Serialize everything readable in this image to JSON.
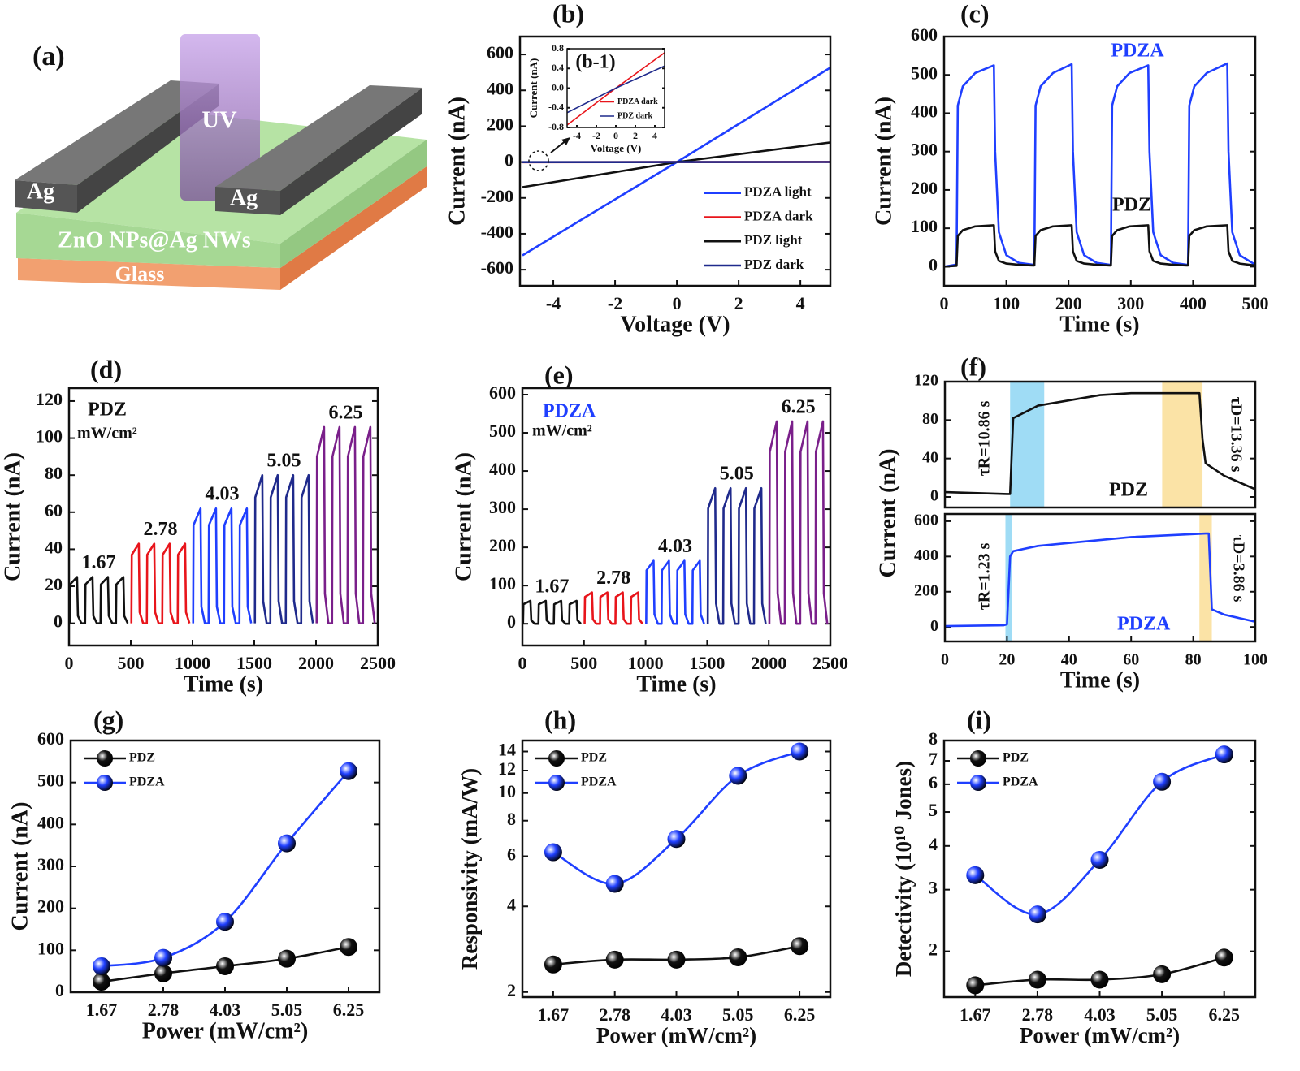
{
  "schematic": {
    "panel_label": "(a)",
    "beam": "UV",
    "electrodes": [
      "Ag",
      "Ag"
    ],
    "layers": [
      "ZnO NPs@Ag NWs",
      "Glass"
    ]
  },
  "chart_data": [
    {
      "type": "line",
      "panel_label": "(b)",
      "xlabel": "Voltage (V)",
      "ylabel": "Current (nA)",
      "x": [
        -5,
        0,
        5
      ],
      "xlim": [
        -5.08,
        4.97
      ],
      "xticks": [
        -4,
        -2,
        0,
        2,
        4
      ],
      "ylim": [
        -690,
        700
      ],
      "yticks": [
        -600,
        -400,
        -200,
        0,
        200,
        400,
        600
      ],
      "legend": "lower right",
      "series": [
        {
          "name": "PDZA light",
          "color": "#1f3fff",
          "values": [
            -520,
            0,
            530
          ]
        },
        {
          "name": "PDZA dark",
          "color": "#e8151b",
          "values": [
            -0.75,
            0,
            0.72
          ]
        },
        {
          "name": "PDZ light",
          "color": "#111111",
          "values": [
            -140,
            0,
            110
          ]
        },
        {
          "name": "PDZ dark",
          "color": "#1f2a8c",
          "values": [
            -0.5,
            0,
            0.45
          ]
        }
      ]
    },
    {
      "type": "line",
      "panel_label": "(b-1)",
      "xlabel": "Voltage (V)",
      "ylabel": "Current (nA)",
      "x": [
        -5,
        0,
        5
      ],
      "xlim": [
        -5,
        5
      ],
      "xticks": [
        -4,
        -2,
        0,
        2,
        4
      ],
      "ylim": [
        -0.8,
        0.8
      ],
      "yticks": [
        -0.8,
        -0.4,
        {
          "value": 0,
          "label": "0.0"
        },
        0.4,
        0.8
      ],
      "legend": "lower right",
      "series": [
        {
          "name": "PDZA dark",
          "color": "#e8151b",
          "values": [
            -0.75,
            0,
            0.72
          ]
        },
        {
          "name": "PDZ dark",
          "color": "#1f2a8c",
          "values": [
            -0.5,
            0,
            0.45
          ]
        }
      ]
    },
    {
      "type": "line",
      "panel_label": "(c)",
      "xlabel": "Time (s)",
      "ylabel": "Current (nA)",
      "x": [
        0,
        18,
        20,
        22,
        30,
        50,
        80,
        82,
        88,
        100,
        120,
        143,
        145,
        147,
        155,
        175,
        205,
        207,
        213,
        225,
        245,
        266,
        268,
        270,
        278,
        298,
        328,
        330,
        336,
        348,
        368,
        390,
        392,
        394,
        402,
        422,
        455,
        457,
        463,
        475,
        500
      ],
      "xlim": [
        0,
        500
      ],
      "xticks": [
        0,
        100,
        200,
        300,
        400,
        500
      ],
      "ylim": [
        -50,
        600
      ],
      "yticks": [
        0,
        100,
        200,
        300,
        400,
        500,
        600
      ],
      "legend": false,
      "series": [
        {
          "name": "PDZA",
          "color": "#1f3fff",
          "values": [
            0,
            5,
            5,
            420,
            470,
            505,
            525,
            300,
            90,
            30,
            10,
            5,
            5,
            420,
            470,
            505,
            528,
            300,
            90,
            30,
            10,
            5,
            5,
            420,
            470,
            505,
            525,
            300,
            90,
            30,
            10,
            5,
            5,
            420,
            470,
            505,
            530,
            300,
            90,
            30,
            5
          ]
        },
        {
          "name": "PDZ",
          "color": "#111111",
          "values": [
            0,
            2,
            2,
            80,
            95,
            105,
            108,
            40,
            15,
            8,
            5,
            3,
            3,
            80,
            95,
            105,
            108,
            40,
            15,
            8,
            5,
            3,
            3,
            80,
            95,
            105,
            108,
            40,
            15,
            8,
            5,
            3,
            3,
            80,
            95,
            105,
            108,
            40,
            15,
            8,
            3
          ]
        }
      ]
    },
    {
      "type": "line",
      "panel_label": "(d)",
      "xlabel": "Time (s)",
      "ylabel": "Current (nA)",
      "xlim": [
        0,
        2500
      ],
      "xticks": [
        0,
        500,
        1000,
        1500,
        2000,
        2500
      ],
      "ylim": [
        -12,
        127
      ],
      "yticks": [
        0,
        20,
        40,
        60,
        80,
        100,
        120
      ],
      "legend": false,
      "annotations": [
        {
          "text": "PDZ"
        },
        {
          "text": "mW/cm²"
        }
      ],
      "series": [
        {
          "name": "1.67",
          "color": "#111111",
          "x": [
            5,
            8,
            65,
            72,
            100,
            130,
            133,
            190,
            197,
            225,
            255,
            258,
            315,
            322,
            350,
            380,
            383,
            440,
            447,
            475
          ],
          "values": [
            0,
            21,
            25,
            4,
            0,
            0,
            21,
            25,
            4,
            0,
            0,
            21,
            25,
            4,
            0,
            0,
            21,
            25,
            4,
            0
          ]
        },
        {
          "name": "2.78",
          "color": "#e8151b",
          "x": [
            505,
            508,
            565,
            572,
            600,
            630,
            633,
            690,
            697,
            725,
            755,
            758,
            815,
            822,
            850,
            880,
            883,
            940,
            947,
            975
          ],
          "values": [
            0,
            37,
            43,
            6,
            0,
            0,
            37,
            43,
            6,
            0,
            0,
            37,
            43,
            6,
            0,
            0,
            37,
            43,
            6,
            0
          ]
        },
        {
          "name": "4.03",
          "color": "#1f3fff",
          "x": [
            1005,
            1008,
            1065,
            1072,
            1100,
            1130,
            1133,
            1190,
            1197,
            1225,
            1255,
            1258,
            1315,
            1322,
            1350,
            1380,
            1383,
            1440,
            1447,
            1475
          ],
          "values": [
            0,
            53,
            62,
            9,
            0,
            0,
            53,
            62,
            9,
            0,
            0,
            53,
            62,
            9,
            0,
            0,
            53,
            62,
            9,
            0
          ]
        },
        {
          "name": "5.05",
          "color": "#1f2a8c",
          "x": [
            1505,
            1508,
            1565,
            1572,
            1600,
            1630,
            1633,
            1690,
            1697,
            1725,
            1755,
            1758,
            1815,
            1822,
            1850,
            1880,
            1883,
            1940,
            1947,
            1975
          ],
          "values": [
            0,
            68,
            80,
            12,
            0,
            0,
            68,
            80,
            12,
            0,
            0,
            68,
            80,
            12,
            0,
            0,
            68,
            80,
            12,
            0
          ]
        },
        {
          "name": "6.25",
          "color": "#7a1f8a",
          "x": [
            2005,
            2008,
            2065,
            2072,
            2100,
            2130,
            2133,
            2190,
            2197,
            2225,
            2255,
            2258,
            2315,
            2322,
            2350,
            2380,
            2383,
            2440,
            2447,
            2475
          ],
          "values": [
            0,
            90,
            106,
            16,
            0,
            0,
            90,
            106,
            16,
            0,
            0,
            90,
            106,
            16,
            0,
            0,
            90,
            106,
            16,
            0
          ]
        }
      ]
    },
    {
      "type": "line",
      "panel_label": "(e)",
      "xlabel": "Time (s)",
      "ylabel": "Current (nA)",
      "xlim": [
        0,
        2500
      ],
      "xticks": [
        0,
        500,
        1000,
        1500,
        2000,
        2500
      ],
      "ylim": [
        -57,
        617
      ],
      "yticks": [
        0,
        100,
        200,
        300,
        400,
        500,
        600
      ],
      "legend": false,
      "annotations": [
        {
          "text": "PDZA",
          "color": "#1f3fff"
        },
        {
          "text": "mW/cm²"
        }
      ],
      "series": [
        {
          "name": "1.67",
          "color": "#111111",
          "x": [
            5,
            8,
            65,
            72,
            100,
            130,
            133,
            190,
            197,
            225,
            255,
            258,
            315,
            322,
            350,
            380,
            383,
            440,
            447,
            475
          ],
          "values": [
            0,
            51,
            60,
            9,
            0,
            0,
            51,
            60,
            9,
            0,
            0,
            51,
            60,
            9,
            0,
            0,
            51,
            60,
            9,
            0
          ]
        },
        {
          "name": "2.78",
          "color": "#e8151b",
          "x": [
            505,
            508,
            565,
            572,
            600,
            630,
            633,
            690,
            697,
            725,
            755,
            758,
            815,
            822,
            850,
            880,
            883,
            940,
            947,
            975
          ],
          "values": [
            0,
            70,
            82,
            12,
            0,
            0,
            70,
            82,
            12,
            0,
            0,
            70,
            82,
            12,
            0,
            0,
            70,
            82,
            12,
            0
          ]
        },
        {
          "name": "4.03",
          "color": "#1f3fff",
          "x": [
            1005,
            1008,
            1065,
            1072,
            1100,
            1130,
            1133,
            1190,
            1197,
            1225,
            1255,
            1258,
            1315,
            1322,
            1350,
            1380,
            1383,
            1440,
            1447,
            1475
          ],
          "values": [
            0,
            140,
            165,
            25,
            0,
            0,
            140,
            165,
            25,
            0,
            0,
            140,
            165,
            25,
            0,
            0,
            140,
            165,
            25,
            0
          ]
        },
        {
          "name": "5.05",
          "color": "#1f2a8c",
          "x": [
            1505,
            1508,
            1565,
            1572,
            1600,
            1630,
            1633,
            1690,
            1697,
            1725,
            1755,
            1758,
            1815,
            1822,
            1850,
            1880,
            1883,
            1940,
            1947,
            1975
          ],
          "values": [
            0,
            302,
            355,
            53,
            0,
            0,
            302,
            355,
            53,
            0,
            0,
            302,
            355,
            53,
            0,
            0,
            302,
            355,
            53,
            0
          ]
        },
        {
          "name": "6.25",
          "color": "#7a1f8a",
          "x": [
            2005,
            2008,
            2065,
            2072,
            2100,
            2130,
            2133,
            2190,
            2197,
            2225,
            2255,
            2258,
            2315,
            2322,
            2350,
            2380,
            2383,
            2440,
            2447,
            2475
          ],
          "values": [
            0,
            450,
            530,
            80,
            0,
            0,
            450,
            530,
            80,
            0,
            0,
            450,
            530,
            80,
            0,
            0,
            450,
            530,
            80,
            0
          ]
        }
      ]
    },
    {
      "type": "line",
      "panel_label": "(f)",
      "x": [
        0,
        20,
        21,
        22,
        30,
        50,
        60,
        82,
        83,
        84,
        90,
        100
      ],
      "xlim": [
        0,
        100
      ],
      "ylim": [
        -11,
        120
      ],
      "yticks": [
        0,
        40,
        80,
        120
      ],
      "legend": false,
      "spans": [
        {
          "x0": 21,
          "x1": 32,
          "color": "#9fdcf5"
        },
        {
          "x0": 70,
          "x1": 83,
          "color": "#fbe3a6"
        }
      ],
      "annotations": [
        {
          "text": "τR=10.86 s"
        },
        {
          "text": "τD=13.36 s"
        },
        {
          "text": "PDZ"
        }
      ],
      "series": [
        {
          "name": "PDZ",
          "color": "#111111",
          "values": [
            5,
            3,
            3,
            82,
            95,
            106,
            108,
            108,
            60,
            35,
            22,
            8
          ]
        }
      ]
    },
    {
      "type": "line",
      "xlabel": "Time (s)",
      "ylabel": "Current (nA)",
      "x": [
        0,
        19,
        20,
        21,
        22,
        30,
        60,
        84,
        85,
        86,
        90,
        100
      ],
      "xlim": [
        0,
        100
      ],
      "xticks": [
        0,
        20,
        40,
        60,
        80,
        100
      ],
      "ylim": [
        -82,
        641
      ],
      "yticks": [
        0,
        200,
        400,
        600
      ],
      "legend": false,
      "spans": [
        {
          "x0": 19.5,
          "x1": 21.5,
          "color": "#9fdcf5"
        },
        {
          "x0": 82,
          "x1": 86,
          "color": "#fbe3a6"
        }
      ],
      "annotations": [
        {
          "text": "τR=1.23 s"
        },
        {
          "text": "τD=3.86 s"
        },
        {
          "text": "PDZA",
          "color": "#1f3fff"
        }
      ],
      "series": [
        {
          "name": "PDZA",
          "color": "#1f3fff",
          "values": [
            5,
            10,
            15,
            400,
            430,
            460,
            510,
            530,
            530,
            100,
            70,
            30
          ]
        }
      ]
    },
    {
      "type": "line",
      "panel_label": "(g)",
      "xlabel": "Power (mW/cm²)",
      "ylabel": "Current (nA)",
      "categories": [
        "1.67",
        "2.78",
        "4.03",
        "5.05",
        "6.25"
      ],
      "markers": true,
      "smooth": true,
      "ylim": [
        0,
        600
      ],
      "yticks": [
        0,
        100,
        200,
        300,
        400,
        500,
        600
      ],
      "legend": "upper left",
      "series": [
        {
          "name": "PDZ",
          "color": "#111111",
          "values": [
            25,
            45,
            62,
            80,
            108
          ]
        },
        {
          "name": "PDZA",
          "color": "#1f3fff",
          "values": [
            62,
            82,
            168,
            355,
            527
          ]
        }
      ]
    },
    {
      "type": "line",
      "panel_label": "(h)",
      "xlabel": "Power (mW/cm²)",
      "ylabel": "Responsivity (mA/W)",
      "categories": [
        "1.67",
        "2.78",
        "4.03",
        "5.05",
        "6.25"
      ],
      "markers": true,
      "smooth": true,
      "yscale": "log",
      "ylim": [
        1.92,
        15.3
      ],
      "yticks": [
        2,
        4,
        6,
        8,
        10,
        12,
        14
      ],
      "legend": "upper left",
      "series": [
        {
          "name": "PDZ",
          "color": "#111111",
          "values": [
            2.5,
            2.6,
            2.6,
            2.65,
            2.9
          ]
        },
        {
          "name": "PDZA",
          "color": "#1f3fff",
          "values": [
            6.2,
            4.8,
            6.9,
            11.5,
            14
          ]
        }
      ]
    },
    {
      "type": "line",
      "panel_label": "(i)",
      "xlabel": "Power (mW/cm²)",
      "ylabel": "Detectivity (10¹⁰ Jones)",
      "categories": [
        "1.67",
        "2.78",
        "4.03",
        "5.05",
        "6.25"
      ],
      "markers": true,
      "smooth": true,
      "yscale": "log",
      "ylim": [
        1.48,
        8
      ],
      "yticks": [
        2,
        3,
        4,
        5,
        6,
        7,
        8
      ],
      "legend": "upper left",
      "series": [
        {
          "name": "PDZ",
          "color": "#111111",
          "values": [
            1.6,
            1.66,
            1.66,
            1.72,
            1.92
          ]
        },
        {
          "name": "PDZA",
          "color": "#1f3fff",
          "values": [
            3.3,
            2.55,
            3.65,
            6.1,
            7.3
          ]
        }
      ]
    }
  ]
}
